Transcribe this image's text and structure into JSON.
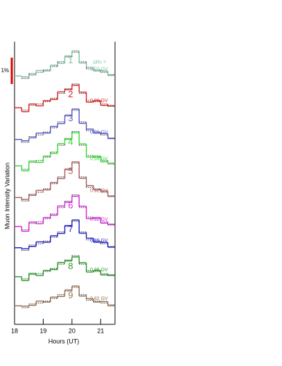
{
  "chart_data": {
    "type": "step",
    "xlabel": "Hours (UT)",
    "ylabel": "Muon Intensity Variation",
    "xlim": [
      18,
      21.5
    ],
    "xticks": [
      18,
      19,
      20,
      21
    ],
    "ylim": [
      0,
      10.7
    ],
    "scale_bar": {
      "value": 1,
      "label": "1%",
      "color": "#e00000"
    },
    "label_title": "ΔRc =",
    "reference_color": "#000000",
    "reference_style": "dotted",
    "x": [
      18,
      18.25,
      18.5,
      18.75,
      19,
      19.25,
      19.5,
      19.75,
      20,
      20.25,
      20.5,
      20.75,
      21,
      21.25
    ],
    "series": [
      {
        "name": "1",
        "color": "#7fbf9f",
        "label": "1.02 GV",
        "values": [
          9.4,
          9.37,
          9.44,
          9.61,
          9.59,
          9.81,
          9.88,
          10.16,
          10.35,
          9.89,
          9.73,
          9.59,
          9.59,
          9.42
        ],
        "reference_values": [
          9.4,
          9.31,
          9.49,
          9.54,
          9.63,
          9.76,
          9.94,
          10.12,
          10.3,
          9.94,
          9.67,
          9.63,
          9.54,
          9.45
        ]
      },
      {
        "name": "2",
        "color": "#e02020",
        "label": "0.99 GV",
        "values": [
          8.2,
          8.05,
          8.34,
          8.27,
          8.47,
          8.51,
          8.8,
          8.88,
          9.05,
          8.79,
          8.41,
          8.47,
          8.29,
          8.28
        ],
        "reference_values": [
          8.2,
          8.11,
          8.29,
          8.34,
          8.43,
          8.56,
          8.74,
          8.92,
          9.1,
          8.74,
          8.47,
          8.43,
          8.34,
          8.25
        ]
      },
      {
        "name": "3",
        "color": "#5555cc",
        "label": "0.96 GV",
        "values": [
          7.0,
          6.95,
          7.06,
          7.24,
          7.24,
          7.49,
          7.6,
          7.92,
          8.15,
          7.61,
          7.39,
          7.24,
          7.22,
          7.03
        ],
        "reference_values": [
          7.0,
          6.89,
          7.11,
          7.17,
          7.28,
          7.44,
          7.66,
          7.88,
          8.1,
          7.66,
          7.33,
          7.28,
          7.17,
          7.06
        ]
      },
      {
        "name": "4",
        "color": "#33dd33",
        "label": "0.94 GV",
        "values": [
          6.0,
          5.81,
          6.18,
          6.13,
          6.37,
          6.47,
          6.84,
          7.0,
          7.25,
          6.83,
          6.33,
          6.37,
          6.15,
          6.1
        ],
        "reference_values": [
          6.0,
          5.87,
          6.13,
          6.2,
          6.33,
          6.52,
          6.78,
          7.04,
          7.3,
          6.78,
          6.39,
          6.33,
          6.2,
          6.07
        ]
      },
      {
        "name": "5",
        "color": "#b05a5a",
        "label": "0.92 GV",
        "values": [
          4.8,
          4.73,
          4.88,
          5.07,
          5.09,
          5.37,
          5.52,
          5.88,
          6.15,
          5.53,
          5.25,
          5.09,
          5.05,
          4.84
        ],
        "reference_values": [
          4.8,
          4.67,
          4.93,
          5.0,
          5.13,
          5.32,
          5.58,
          5.84,
          6.1,
          5.58,
          5.19,
          5.13,
          5.0,
          4.87
        ]
      },
      {
        "name": "6",
        "color": "#dd22dd",
        "label": "0.92 GV",
        "values": [
          3.7,
          3.52,
          3.87,
          3.81,
          4.04,
          4.13,
          4.48,
          4.62,
          4.85,
          4.47,
          4.0,
          4.04,
          3.83,
          3.79
        ],
        "reference_values": [
          3.7,
          3.58,
          3.82,
          3.88,
          4.0,
          4.18,
          4.42,
          4.66,
          4.9,
          4.42,
          4.06,
          4.0,
          3.88,
          3.76
        ]
      },
      {
        "name": "7",
        "color": "#1a1acc",
        "label": "0.89 GV",
        "values": [
          2.9,
          2.86,
          2.95,
          3.12,
          3.11,
          3.35,
          3.44,
          3.74,
          3.95,
          3.45,
          3.26,
          3.11,
          3.1,
          2.92
        ],
        "reference_values": [
          2.9,
          2.8,
          3.0,
          3.05,
          3.15,
          3.3,
          3.5,
          3.7,
          3.9,
          3.5,
          3.2,
          3.15,
          3.05,
          2.95
        ]
      },
      {
        "name": "8",
        "color": "#229922",
        "label": "0.86 GV",
        "values": [
          1.8,
          1.66,
          1.93,
          1.85,
          2.04,
          2.07,
          2.34,
          2.4,
          2.55,
          2.33,
          1.98,
          2.04,
          1.87,
          1.87
        ],
        "reference_values": [
          1.8,
          1.72,
          1.88,
          1.92,
          2.0,
          2.12,
          2.28,
          2.44,
          2.6,
          2.28,
          2.04,
          2.0,
          1.92,
          1.84
        ]
      },
      {
        "name": "9",
        "color": "#99704f",
        "label": "0.82 GV",
        "values": [
          0.7,
          0.69,
          0.72,
          0.88,
          0.84,
          1.03,
          1.06,
          1.3,
          1.45,
          1.07,
          0.97,
          0.84,
          0.86,
          0.7
        ],
        "reference_values": [
          0.7,
          0.63,
          0.77,
          0.81,
          0.88,
          0.98,
          1.12,
          1.26,
          1.4,
          1.12,
          0.91,
          0.88,
          0.81,
          0.74
        ]
      }
    ]
  }
}
